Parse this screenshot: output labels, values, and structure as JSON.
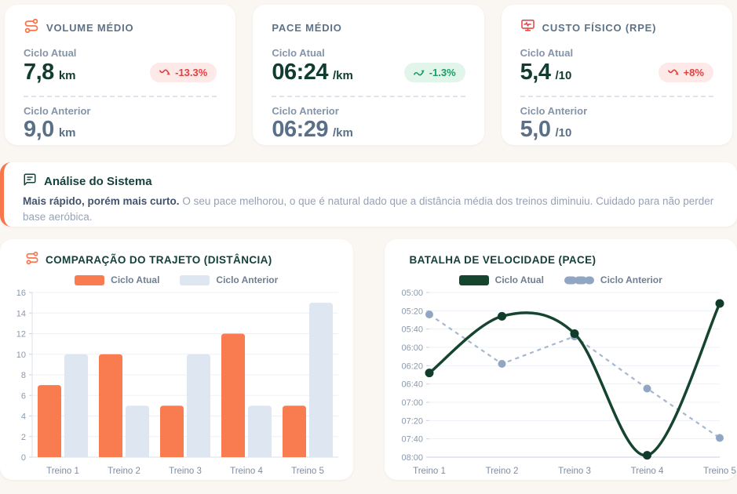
{
  "page": {
    "background_color": "#FAF6F1",
    "accent_orange": "#F8764B",
    "accent_dark_green": "#113C30",
    "accent_slate": "#5A7089"
  },
  "metrics": [
    {
      "icon": "route-icon",
      "title": "VOLUME MÉDIO",
      "current": {
        "label": "Ciclo Atual",
        "value": "7,8",
        "unit": "km"
      },
      "badge": {
        "icon": "trend-down-icon",
        "text": "-13.3%",
        "tone": "negative"
      },
      "previous": {
        "label": "Ciclo Anterior",
        "value": "9,0",
        "unit": "km"
      }
    },
    {
      "icon": null,
      "title": "PACE MÉDIO",
      "current": {
        "label": "Ciclo Atual",
        "value": "06:24",
        "unit": "/km"
      },
      "badge": {
        "icon": "trend-up-icon",
        "text": "-1.3%",
        "tone": "positive"
      },
      "previous": {
        "label": "Ciclo Anterior",
        "value": "06:29",
        "unit": "/km"
      }
    },
    {
      "icon": "monitor-heart-icon",
      "title": "CUSTO FÍSICO (RPE)",
      "current": {
        "label": "Ciclo Atual",
        "value": "5,4",
        "unit": "/10"
      },
      "badge": {
        "icon": "trend-down-icon",
        "text": "+8%",
        "tone": "negative"
      },
      "previous": {
        "label": "Ciclo Anterior",
        "value": "5,0",
        "unit": "/10"
      }
    }
  ],
  "analysis": {
    "icon": "message-square-icon",
    "title": "Análise do Sistema",
    "lead": "Mais rápido, porém mais curto.",
    "body": "O seu pace melhorou, o que é natural dado que a distância média dos treinos diminuiu. Cuidado para não perder base aeróbica."
  },
  "chart_data": [
    {
      "type": "bar",
      "title": "COMPARAÇÃO DO TRAJETO (DISTÂNCIA)",
      "title_icon": "route-icon",
      "categories": [
        "Treino 1",
        "Treino 2",
        "Treino 3",
        "Treino 4",
        "Treino 5"
      ],
      "series": [
        {
          "name": "Ciclo Atual",
          "color": "#F97B50",
          "values": [
            7,
            10,
            5,
            12,
            5
          ]
        },
        {
          "name": "Ciclo Anterior",
          "color": "#DEE6F2",
          "values": [
            10,
            5,
            10,
            5,
            15
          ]
        }
      ],
      "xlabel": "",
      "ylabel": "",
      "ylim": [
        0,
        16
      ],
      "ytick_step": 2,
      "grid": true,
      "legend_position": "top"
    },
    {
      "type": "line",
      "title": "BATALHA DE VELOCIDADE (PACE)",
      "categories": [
        "Treino 1",
        "Treino 2",
        "Treino 3",
        "Treino 4",
        "Treino 5"
      ],
      "series": [
        {
          "name": "Ciclo Atual",
          "color": "#15442F",
          "marker_color": "#113C2B",
          "style": "solid",
          "smooth": true,
          "values": [
            "06:28",
            "05:26",
            "05:45",
            "07:58",
            "05:12"
          ]
        },
        {
          "name": "Ciclo Anterior",
          "color": "#A6B8D0",
          "marker_color": "#90A6C3",
          "style": "dashed",
          "smooth": false,
          "values": [
            "05:24",
            "06:18",
            "05:48",
            "06:45",
            "07:39"
          ]
        }
      ],
      "y_axis": {
        "top": "05:00",
        "bottom": "08:00",
        "tick_interval": "00:20",
        "note": "pace axis, faster (05:00) on top"
      },
      "grid": true,
      "legend_position": "top"
    }
  ]
}
